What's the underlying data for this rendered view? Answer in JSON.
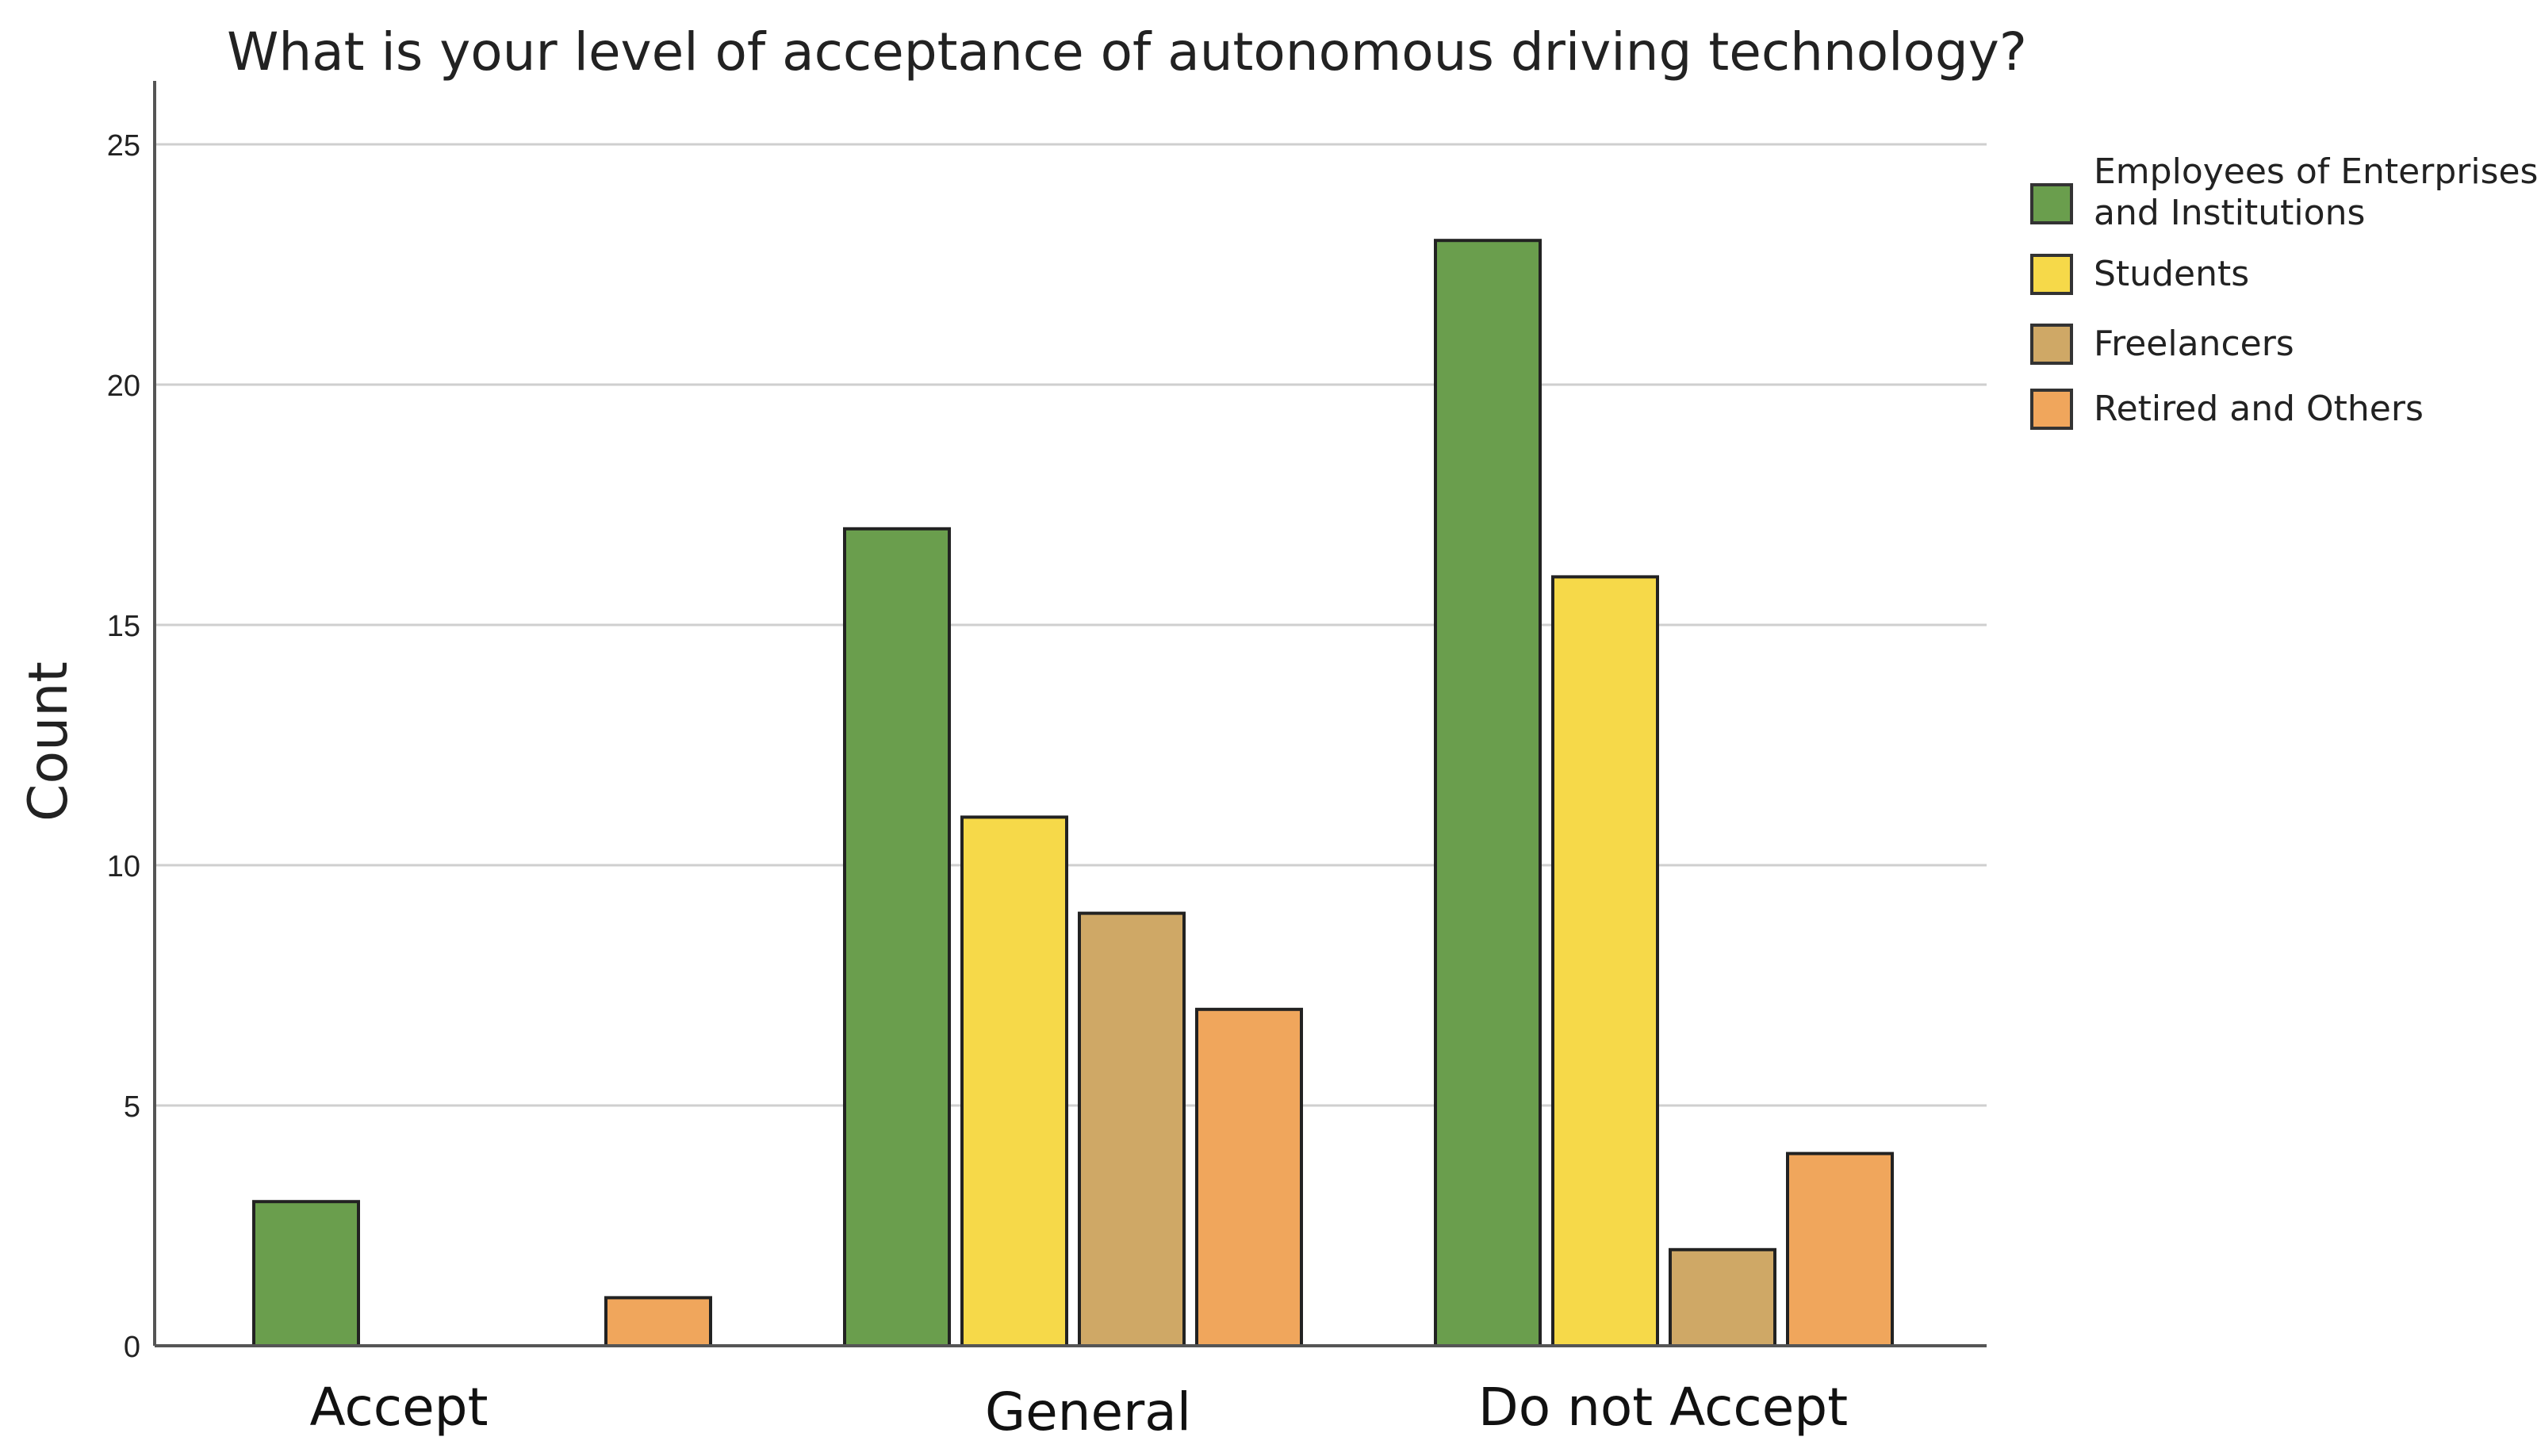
{
  "chart_data": {
    "type": "bar",
    "title": "What is your level of acceptance of autonomous driving technology?",
    "xlabel": "",
    "ylabel": "Count",
    "ylim": [
      0,
      25
    ],
    "yticks": [
      0,
      5,
      10,
      15,
      20,
      25
    ],
    "grid": true,
    "legend_position": "top-right",
    "categories": [
      "Accept",
      "General",
      "Do not Accept"
    ],
    "series": [
      {
        "name": "Employees of Enterprises and Institutions",
        "legend_lines": [
          "Employees of Enterprises",
          "and Institutions"
        ],
        "color": "#6a9e4d",
        "values": [
          3,
          17,
          23
        ]
      },
      {
        "name": "Students",
        "legend_lines": [
          "Students"
        ],
        "color": "#f6d949",
        "values": [
          0,
          11,
          16
        ]
      },
      {
        "name": "Freelancers",
        "legend_lines": [
          "Freelancers"
        ],
        "color": "#cfa866",
        "values": [
          0,
          9,
          2
        ]
      },
      {
        "name": "Retired and Others",
        "legend_lines": [
          "Retired and Others"
        ],
        "color": "#f0a65c",
        "values": [
          1,
          7,
          4
        ]
      }
    ]
  }
}
